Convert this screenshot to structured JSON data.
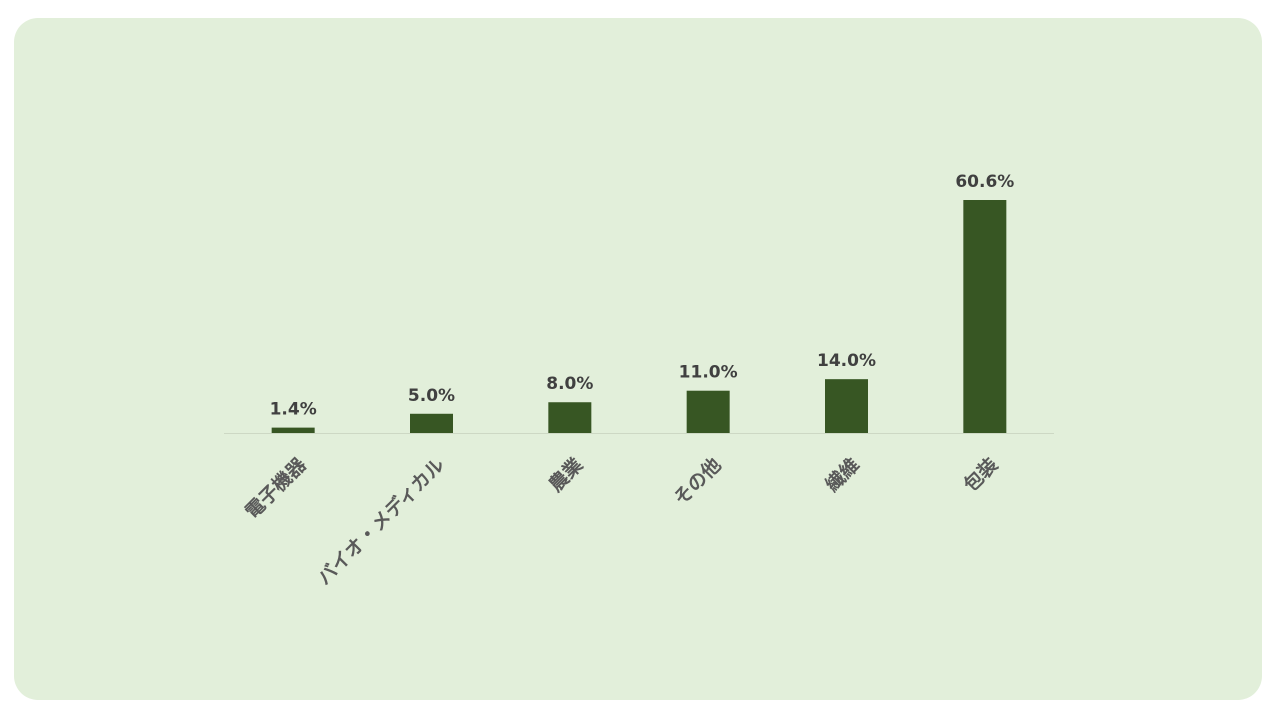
{
  "chart_data": {
    "type": "bar",
    "categories": [
      "電子機器",
      "バイオ・メディカル",
      "農業",
      "その他",
      "繊維",
      "包装"
    ],
    "values": [
      1.4,
      5.0,
      8.0,
      11.0,
      14.0,
      60.6
    ],
    "value_labels": [
      "1.4%",
      "5.0%",
      "8.0%",
      "11.0%",
      "14.0%",
      "60.6%"
    ],
    "color": "#375623"
  }
}
